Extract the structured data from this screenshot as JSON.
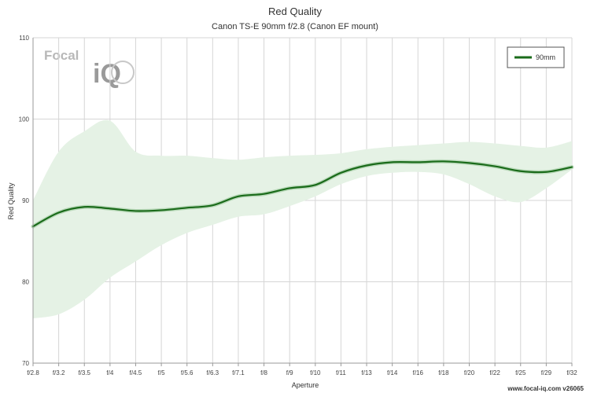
{
  "chart_data": {
    "type": "line",
    "title": "Red Quality",
    "subtitle": "Canon TS-E 90mm f/2.8 (Canon EF mount)",
    "xlabel": "Aperture",
    "ylabel": "Red Quality",
    "ylim": [
      70,
      110
    ],
    "yticks": [
      70,
      80,
      90,
      100,
      110
    ],
    "categories": [
      "f/2.8",
      "f/3.2",
      "f/3.5",
      "f/4",
      "f/4.5",
      "f/5",
      "f/5.6",
      "f/6.3",
      "f/7.1",
      "f/8",
      "f/9",
      "f/10",
      "f/11",
      "f/13",
      "f/14",
      "f/16",
      "f/18",
      "f/20",
      "f/22",
      "f/25",
      "f/29",
      "f/32"
    ],
    "series": [
      {
        "name": "90mm",
        "color": "#1a6b1a",
        "values": [
          86.8,
          88.5,
          89.2,
          89.0,
          88.7,
          88.8,
          89.1,
          89.4,
          90.5,
          90.8,
          91.5,
          91.9,
          93.4,
          94.3,
          94.7,
          94.7,
          94.8,
          94.6,
          94.2,
          93.6,
          93.5,
          94.1
        ],
        "band_upper": [
          90.0,
          96.0,
          98.5,
          99.8,
          96.0,
          95.5,
          95.5,
          95.2,
          95.0,
          95.3,
          95.5,
          95.6,
          95.8,
          96.3,
          96.6,
          96.8,
          97.0,
          97.2,
          97.0,
          96.7,
          96.5,
          97.3
        ],
        "band_lower": [
          75.5,
          76.0,
          77.8,
          80.5,
          82.5,
          84.5,
          86.0,
          87.0,
          88.0,
          88.3,
          89.3,
          90.5,
          92.0,
          93.0,
          93.4,
          93.5,
          93.2,
          92.0,
          90.5,
          89.8,
          91.5,
          93.8
        ]
      }
    ],
    "grid": true,
    "legend": "top-right",
    "band_color": "#e5f2e5"
  },
  "logo": {
    "top": "Focal",
    "bottom": "iQ"
  },
  "credit": "www.focal-iq.com  v26065"
}
